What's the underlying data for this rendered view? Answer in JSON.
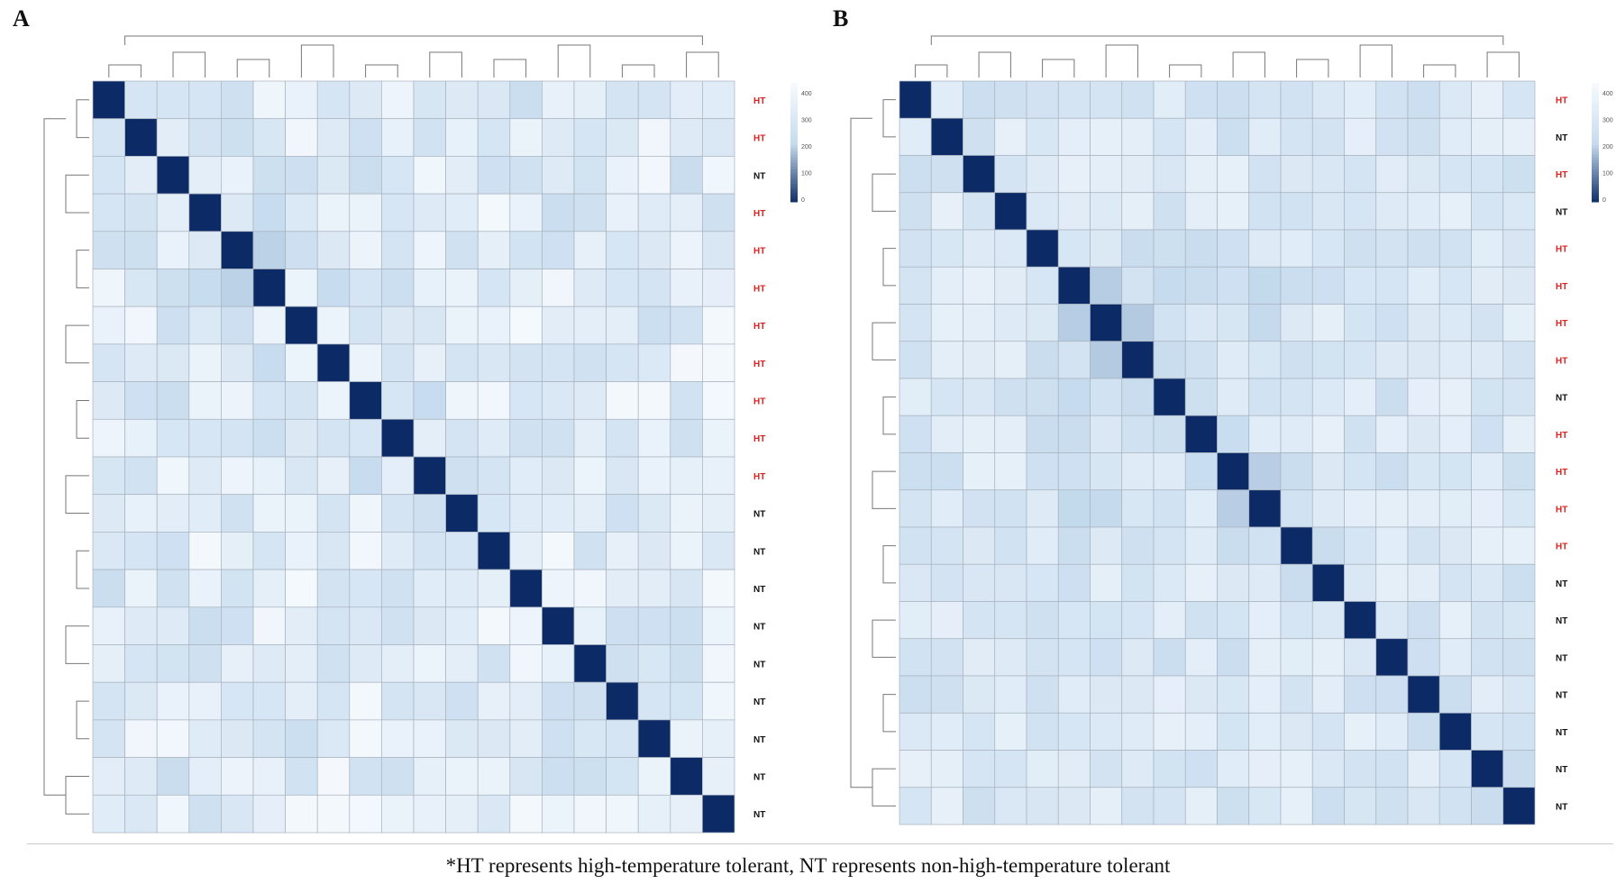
{
  "caption": "*HT represents high-temperature tolerant, NT represents non-high-temperature tolerant",
  "colors": {
    "HT": "#e0201e",
    "NT": "#111111",
    "diagonal": "#0c2b66"
  },
  "chart_data": [
    {
      "panel": "A",
      "type": "heatmap",
      "n": 20,
      "row_labels": [
        "HT",
        "HT",
        "NT",
        "HT",
        "HT",
        "HT",
        "HT",
        "HT",
        "HT",
        "HT",
        "HT",
        "NT",
        "NT",
        "NT",
        "NT",
        "NT",
        "NT",
        "NT",
        "NT",
        "NT"
      ],
      "diagonal_value": 0,
      "off_diagonal_typical_range": [
        240,
        440
      ],
      "dendrogram_rows": true,
      "dendrogram_cols": true,
      "colorbar": {
        "ticks": [
          "400",
          "300",
          "200",
          "100",
          "0"
        ]
      }
    },
    {
      "panel": "B",
      "type": "heatmap",
      "n": 20,
      "row_labels": [
        "HT",
        "NT",
        "HT",
        "NT",
        "HT",
        "HT",
        "HT",
        "HT",
        "NT",
        "HT",
        "HT",
        "HT",
        "HT",
        "NT",
        "NT",
        "NT",
        "NT",
        "NT",
        "NT",
        "NT"
      ],
      "diagonal_value": 0,
      "off_diagonal_typical_range": [
        250,
        380
      ],
      "dendrogram_rows": true,
      "dendrogram_cols": true,
      "colorbar": {
        "ticks": [
          "400",
          "300",
          "200",
          "100",
          "0"
        ]
      }
    }
  ]
}
